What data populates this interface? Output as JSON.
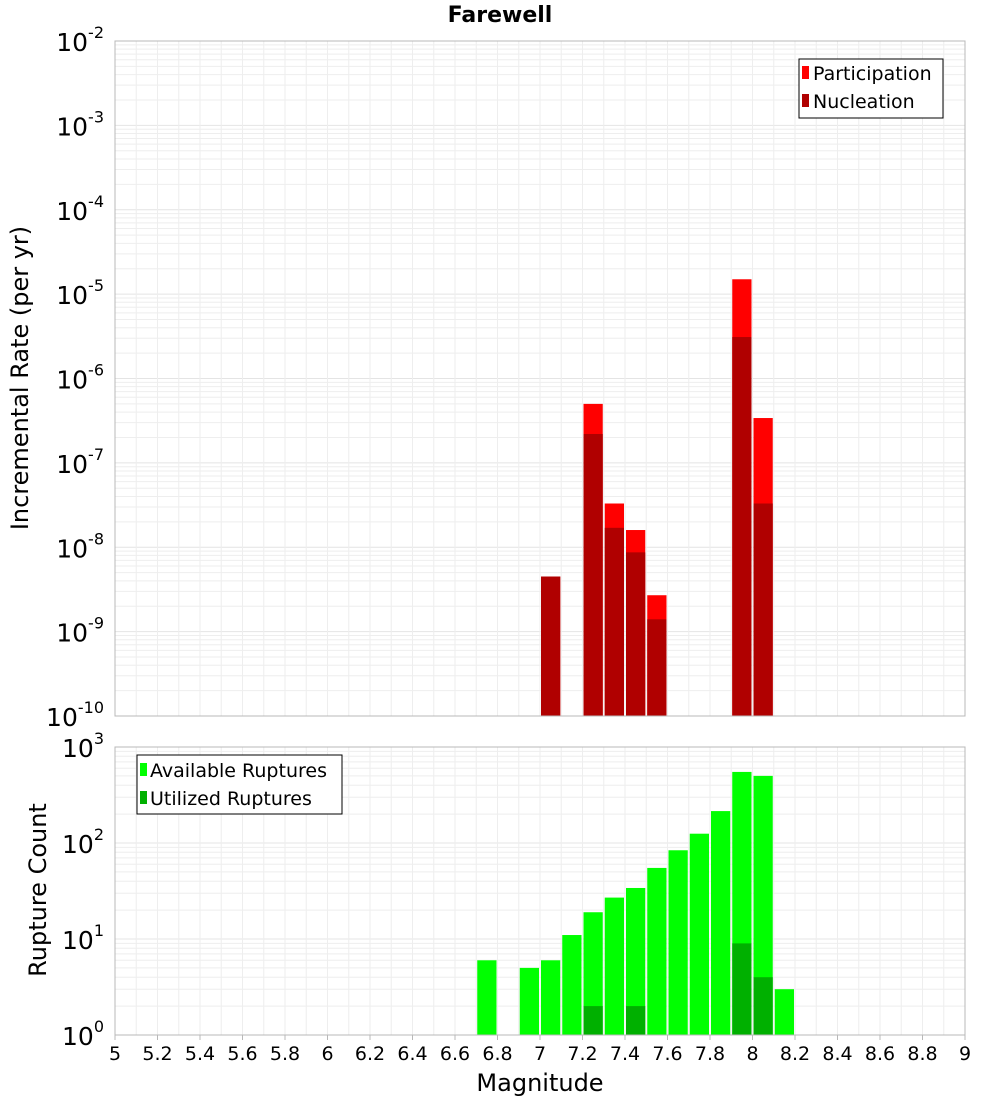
{
  "chart_data": [
    {
      "type": "bar",
      "title": "Farewell",
      "ylabel": "Incremental Rate (per yr)",
      "y_scale": "log",
      "ylim_exponents": [
        -10,
        -2
      ],
      "legend_position": "top-right",
      "colors": {
        "participation": "#ff0000",
        "nucleation": "#b00000"
      },
      "series": [
        {
          "name": "Participation",
          "x": [
            7.05,
            7.25,
            7.35,
            7.45,
            7.55,
            7.95,
            8.05
          ],
          "values": [
            4.5e-09,
            5e-07,
            3.3e-08,
            1.6e-08,
            2.7e-09,
            1.5e-05,
            3.4e-07
          ]
        },
        {
          "name": "Nucleation",
          "x": [
            7.05,
            7.25,
            7.35,
            7.45,
            7.55,
            7.95,
            8.05
          ],
          "values": [
            4.5e-09,
            2.2e-07,
            1.7e-08,
            8.7e-09,
            1.4e-09,
            3.1e-06,
            3.3e-08
          ]
        }
      ]
    },
    {
      "type": "bar",
      "xlabel": "Magnitude",
      "ylabel": "Rupture Count",
      "y_scale": "log",
      "ylim_exponents": [
        0,
        3
      ],
      "xlim": [
        5,
        9
      ],
      "x_ticks": [
        "5",
        "5.2",
        "5.4",
        "5.6",
        "5.8",
        "6",
        "6.2",
        "6.4",
        "6.6",
        "6.8",
        "7",
        "7.2",
        "7.4",
        "7.6",
        "7.8",
        "8",
        "8.2",
        "8.4",
        "8.6",
        "8.8",
        "9"
      ],
      "legend_position": "top-left",
      "colors": {
        "available": "#00ff00",
        "utilized": "#00b000"
      },
      "series": [
        {
          "name": "Available Ruptures",
          "x": [
            6.75,
            6.95,
            7.05,
            7.15,
            7.25,
            7.35,
            7.45,
            7.55,
            7.65,
            7.75,
            7.85,
            7.95,
            8.05,
            8.15
          ],
          "values": [
            6,
            5,
            6,
            11,
            19,
            27,
            34,
            55,
            84,
            125,
            215,
            550,
            500,
            3
          ]
        },
        {
          "name": "Utilized Ruptures",
          "x": [
            7.05,
            7.25,
            7.35,
            7.45,
            7.55,
            7.85,
            7.95,
            8.05
          ],
          "values": [
            1,
            2,
            1,
            2,
            1,
            1,
            9,
            4
          ]
        }
      ]
    }
  ]
}
